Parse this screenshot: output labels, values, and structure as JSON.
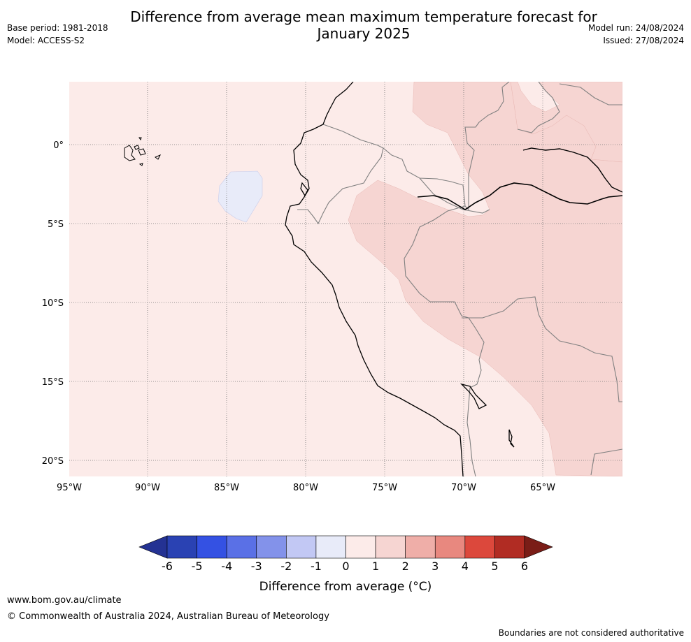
{
  "title": {
    "line1": "Difference from average mean maximum temperature forecast for",
    "line2": "January 2025"
  },
  "meta": {
    "base_period": "Base period: 1981-2018",
    "model": "Model: ACCESS-S2",
    "model_run": "Model run: 24/08/2024",
    "issued": "Issued: 27/08/2024"
  },
  "map": {
    "lon_range": [
      -95,
      -60
    ],
    "lat_range": [
      -21,
      4
    ],
    "lon_labels": [
      "95°W",
      "90°W",
      "85°W",
      "80°W",
      "75°W",
      "70°W",
      "65°W"
    ],
    "lat_labels": [
      "0°",
      "5°S",
      "10°S",
      "15°S",
      "20°S"
    ],
    "gridlines": "dotted",
    "background_anomaly_band": "0 to 1",
    "colors": {
      "band_minus1_0": "#e8ebf9",
      "band_0_1": "#fcebe9",
      "band_1_2": "#f6d5d2",
      "coastline": "#000000",
      "borders": "#808080"
    }
  },
  "colorbar": {
    "ticks": [
      "-6",
      "-5",
      "-4",
      "-3",
      "-2",
      "-1",
      "0",
      "1",
      "2",
      "3",
      "4",
      "5",
      "6"
    ],
    "colors": [
      "#243293",
      "#2a42b3",
      "#3451e3",
      "#5a70e6",
      "#8392ea",
      "#c2c8f4",
      "#e8ebf9",
      "#fcebe9",
      "#f6d5d2",
      "#efaea8",
      "#e8887f",
      "#dc483c",
      "#b12c23",
      "#7a1d17"
    ],
    "label": "Difference from average (°C)"
  },
  "footer": {
    "url": "www.bom.gov.au/climate",
    "copyright": "© Commonwealth of Australia 2024, Australian Bureau of Meteorology",
    "disclaimer": "Boundaries are not considered authoritative"
  }
}
